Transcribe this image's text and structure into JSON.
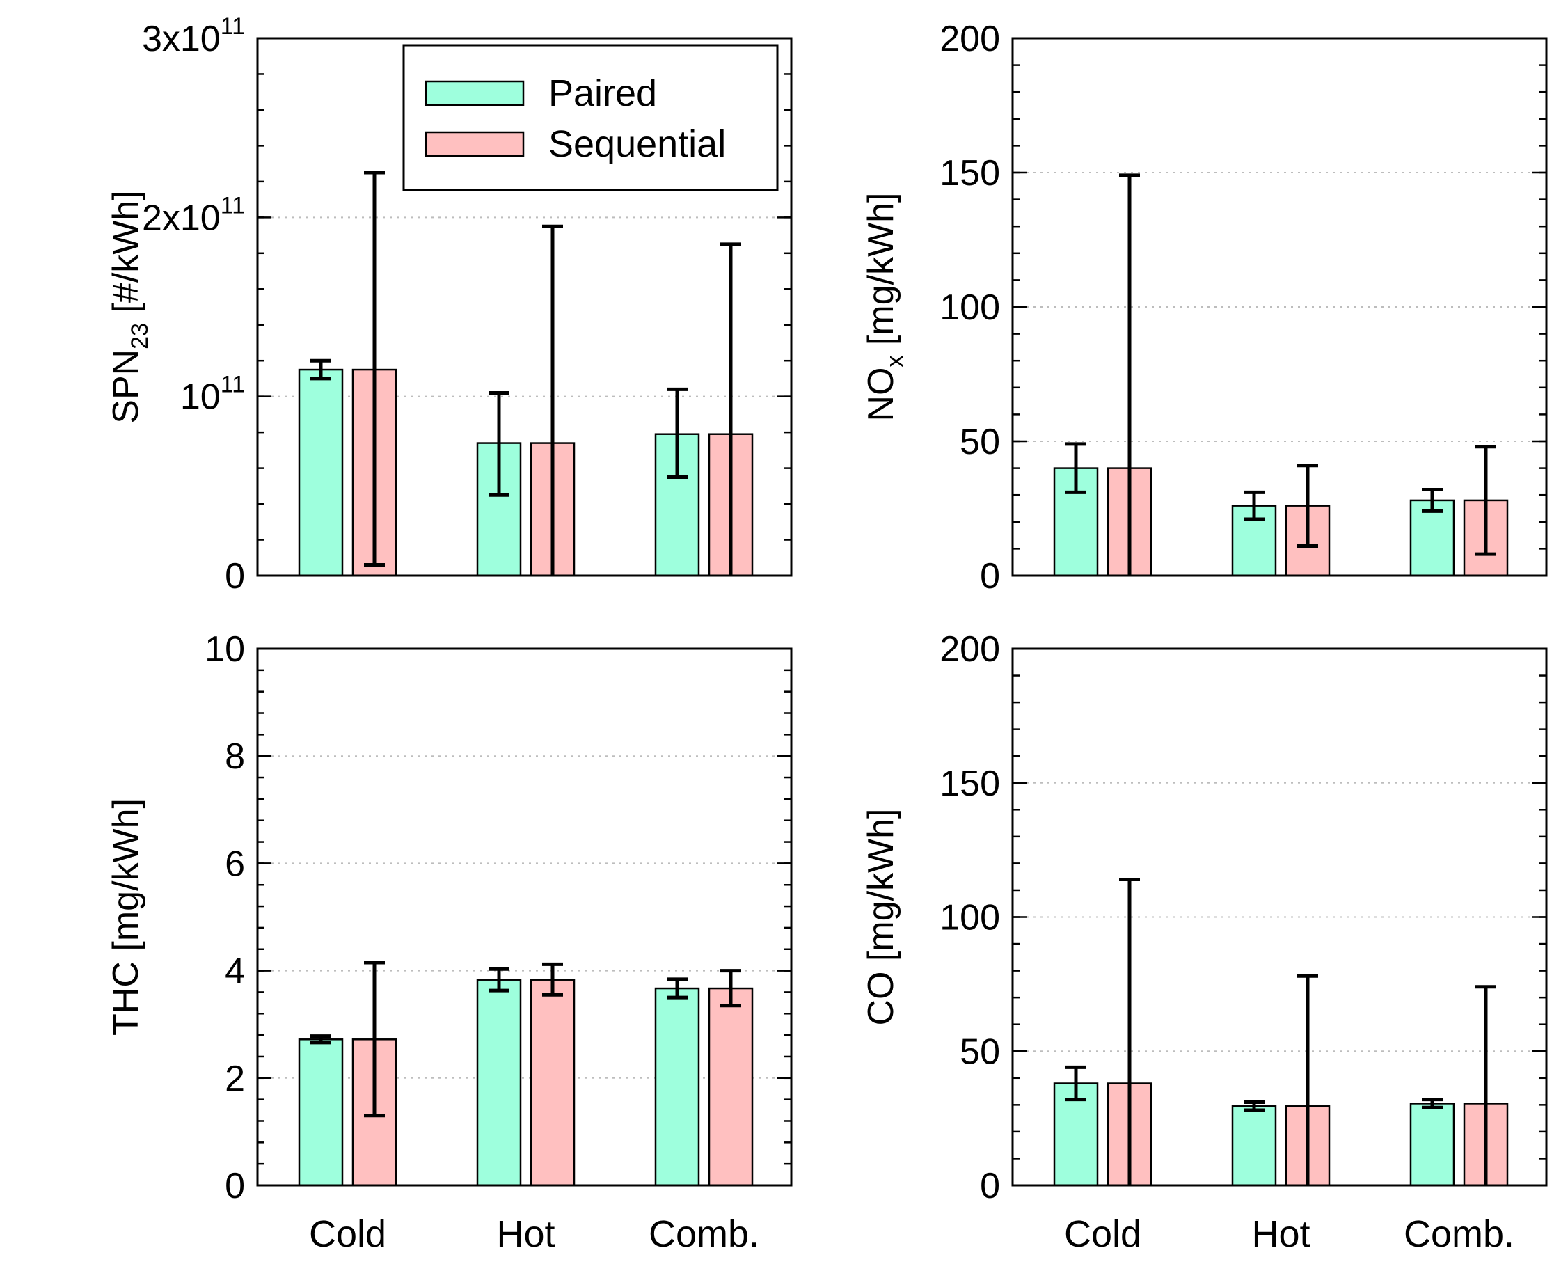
{
  "colors": {
    "paired": "#9effdd",
    "sequential": "#ffc0c0"
  },
  "legend": {
    "paired_label": "Paired",
    "sequential_label": "Sequential"
  },
  "chart_data": [
    {
      "type": "bar",
      "id": "spn",
      "ylabel_main": "SPN",
      "ylabel_sub": "23",
      "ylabel_rest": " [#/kWh]",
      "ylim": [
        0,
        300000000000.0
      ],
      "yticks": [
        {
          "value": 0,
          "base": "0",
          "exp": ""
        },
        {
          "value": 100000000000.0,
          "base": "10",
          "exp": "11"
        },
        {
          "value": 200000000000.0,
          "base": "2x10",
          "exp": "11"
        },
        {
          "value": 300000000000.0,
          "base": "3x10",
          "exp": "11"
        }
      ],
      "minor_step": 20000000000.0,
      "grid": [
        100000000000.0,
        200000000000.0
      ],
      "categories": [
        "Cold",
        "Hot",
        "Comb."
      ],
      "show_categories": false,
      "series": [
        {
          "name": "Paired",
          "values": [
            115000000000.0,
            74000000000.0,
            79000000000.0
          ],
          "err_low": [
            110000000000.0,
            45000000000.0,
            55000000000.0
          ],
          "err_high": [
            120000000000.0,
            102000000000.0,
            104000000000.0
          ]
        },
        {
          "name": "Sequential",
          "values": [
            115000000000.0,
            74000000000.0,
            79000000000.0
          ],
          "err_low": [
            6000000000.0,
            0,
            0
          ],
          "err_high": [
            225000000000.0,
            195000000000.0,
            185000000000.0
          ]
        }
      ]
    },
    {
      "type": "bar",
      "id": "nox",
      "ylabel_main": "NO",
      "ylabel_sub": "x",
      "ylabel_rest": " [mg/kWh]",
      "ylim": [
        0,
        200
      ],
      "yticks": [
        {
          "value": 0,
          "base": "0",
          "exp": ""
        },
        {
          "value": 50,
          "base": "50",
          "exp": ""
        },
        {
          "value": 100,
          "base": "100",
          "exp": ""
        },
        {
          "value": 150,
          "base": "150",
          "exp": ""
        },
        {
          "value": 200,
          "base": "200",
          "exp": ""
        }
      ],
      "minor_step": 10,
      "grid": [
        50,
        100,
        150
      ],
      "categories": [
        "Cold",
        "Hot",
        "Comb."
      ],
      "show_categories": false,
      "series": [
        {
          "name": "Paired",
          "values": [
            40,
            26,
            28
          ],
          "err_low": [
            31,
            21,
            24
          ],
          "err_high": [
            49,
            31,
            32
          ]
        },
        {
          "name": "Sequential",
          "values": [
            40,
            26,
            28
          ],
          "err_low": [
            0,
            11,
            8
          ],
          "err_high": [
            149,
            41,
            48
          ]
        }
      ]
    },
    {
      "type": "bar",
      "id": "thc",
      "ylabel_main": "THC",
      "ylabel_sub": "",
      "ylabel_rest": " [mg/kWh]",
      "ylim": [
        0,
        10
      ],
      "yticks": [
        {
          "value": 0,
          "base": "0",
          "exp": ""
        },
        {
          "value": 2,
          "base": "2",
          "exp": ""
        },
        {
          "value": 4,
          "base": "4",
          "exp": ""
        },
        {
          "value": 6,
          "base": "6",
          "exp": ""
        },
        {
          "value": 8,
          "base": "8",
          "exp": ""
        },
        {
          "value": 10,
          "base": "10",
          "exp": ""
        }
      ],
      "minor_step": 0.4,
      "grid": [
        2,
        4,
        6,
        8
      ],
      "categories": [
        "Cold",
        "Hot",
        "Comb."
      ],
      "show_categories": true,
      "series": [
        {
          "name": "Paired",
          "values": [
            2.72,
            3.83,
            3.67
          ],
          "err_low": [
            2.66,
            3.63,
            3.5
          ],
          "err_high": [
            2.78,
            4.03,
            3.84
          ]
        },
        {
          "name": "Sequential",
          "values": [
            2.72,
            3.83,
            3.67
          ],
          "err_low": [
            1.3,
            3.55,
            3.35
          ],
          "err_high": [
            4.15,
            4.12,
            4.0
          ]
        }
      ]
    },
    {
      "type": "bar",
      "id": "co",
      "ylabel_main": "CO",
      "ylabel_sub": "",
      "ylabel_rest": " [mg/kWh]",
      "ylim": [
        0,
        200
      ],
      "yticks": [
        {
          "value": 0,
          "base": "0",
          "exp": ""
        },
        {
          "value": 50,
          "base": "50",
          "exp": ""
        },
        {
          "value": 100,
          "base": "100",
          "exp": ""
        },
        {
          "value": 150,
          "base": "150",
          "exp": ""
        },
        {
          "value": 200,
          "base": "200",
          "exp": ""
        }
      ],
      "minor_step": 10,
      "grid": [
        50,
        100,
        150
      ],
      "categories": [
        "Cold",
        "Hot",
        "Comb."
      ],
      "show_categories": true,
      "series": [
        {
          "name": "Paired",
          "values": [
            38,
            29.5,
            30.5
          ],
          "err_low": [
            32,
            28,
            29
          ],
          "err_high": [
            44,
            31,
            32
          ]
        },
        {
          "name": "Sequential",
          "values": [
            38,
            29.5,
            30.5
          ],
          "err_low": [
            0,
            0,
            0
          ],
          "err_high": [
            114,
            78,
            74
          ]
        }
      ]
    }
  ]
}
